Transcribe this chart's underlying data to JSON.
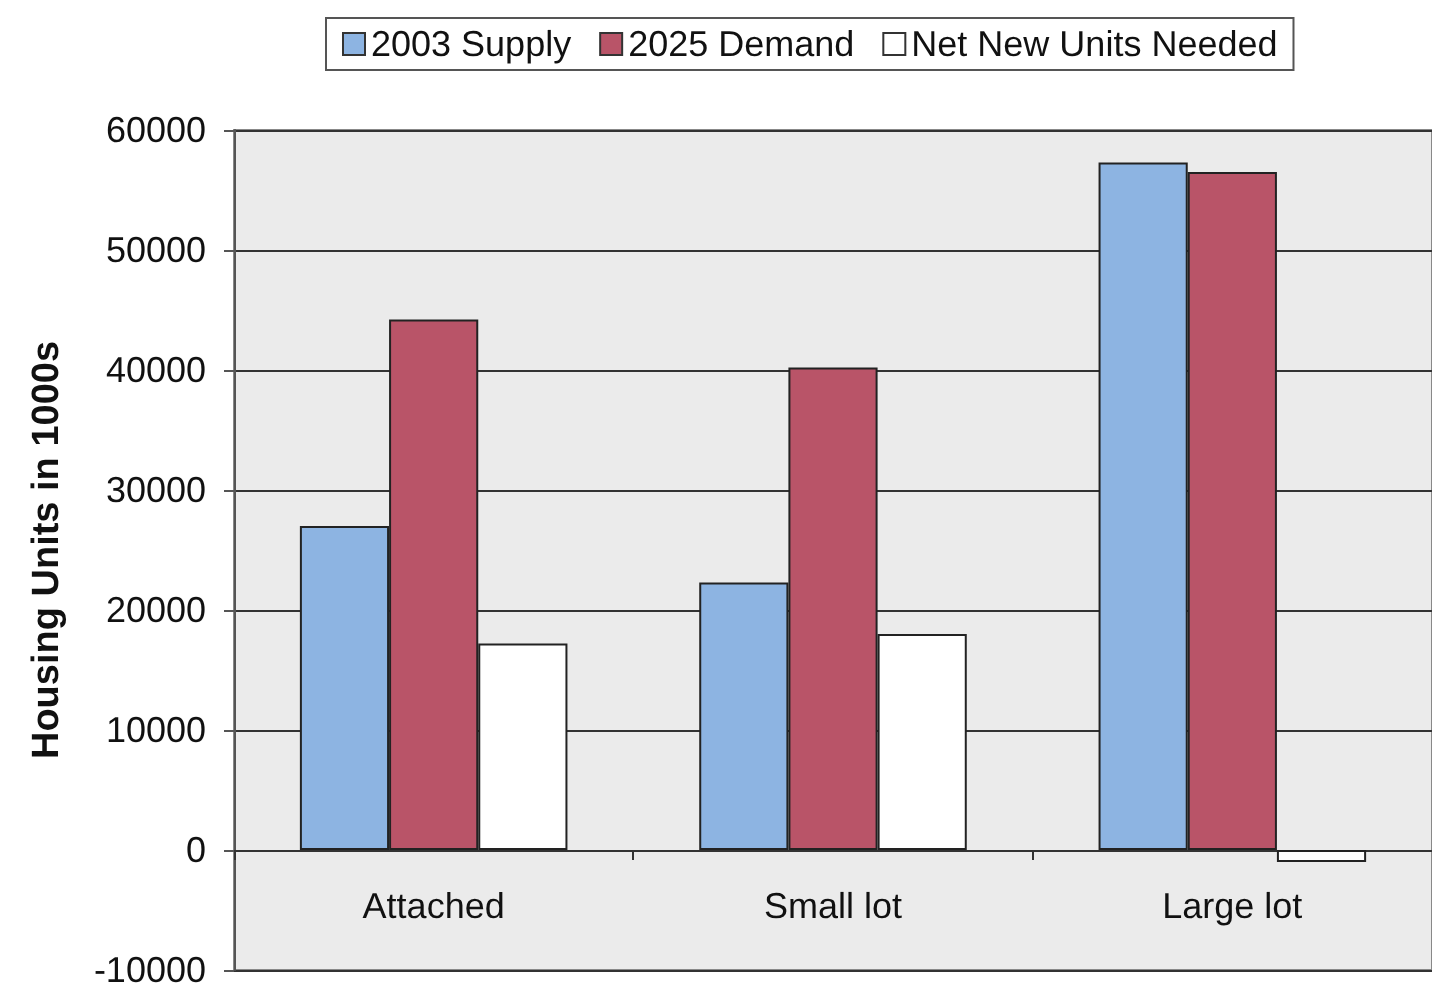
{
  "chart_data": {
    "type": "bar",
    "ylabel": "Housing Units in 1000s",
    "categories": [
      "Attached",
      "Small lot",
      "Large lot"
    ],
    "series": [
      {
        "name": "2003 Supply",
        "color": "#8db4e2",
        "values": [
          27000,
          22300,
          57300
        ]
      },
      {
        "name": "2025 Demand",
        "color": "#b95468",
        "values": [
          44200,
          40200,
          56500
        ]
      },
      {
        "name": "Net New Units Needed",
        "color": "#ffffff",
        "values": [
          17200,
          18000,
          -1000
        ]
      }
    ],
    "ylim": [
      -10000,
      60000
    ],
    "yticks": [
      -10000,
      0,
      10000,
      20000,
      30000,
      40000,
      50000,
      60000
    ],
    "grid": "y",
    "legend": "top"
  }
}
